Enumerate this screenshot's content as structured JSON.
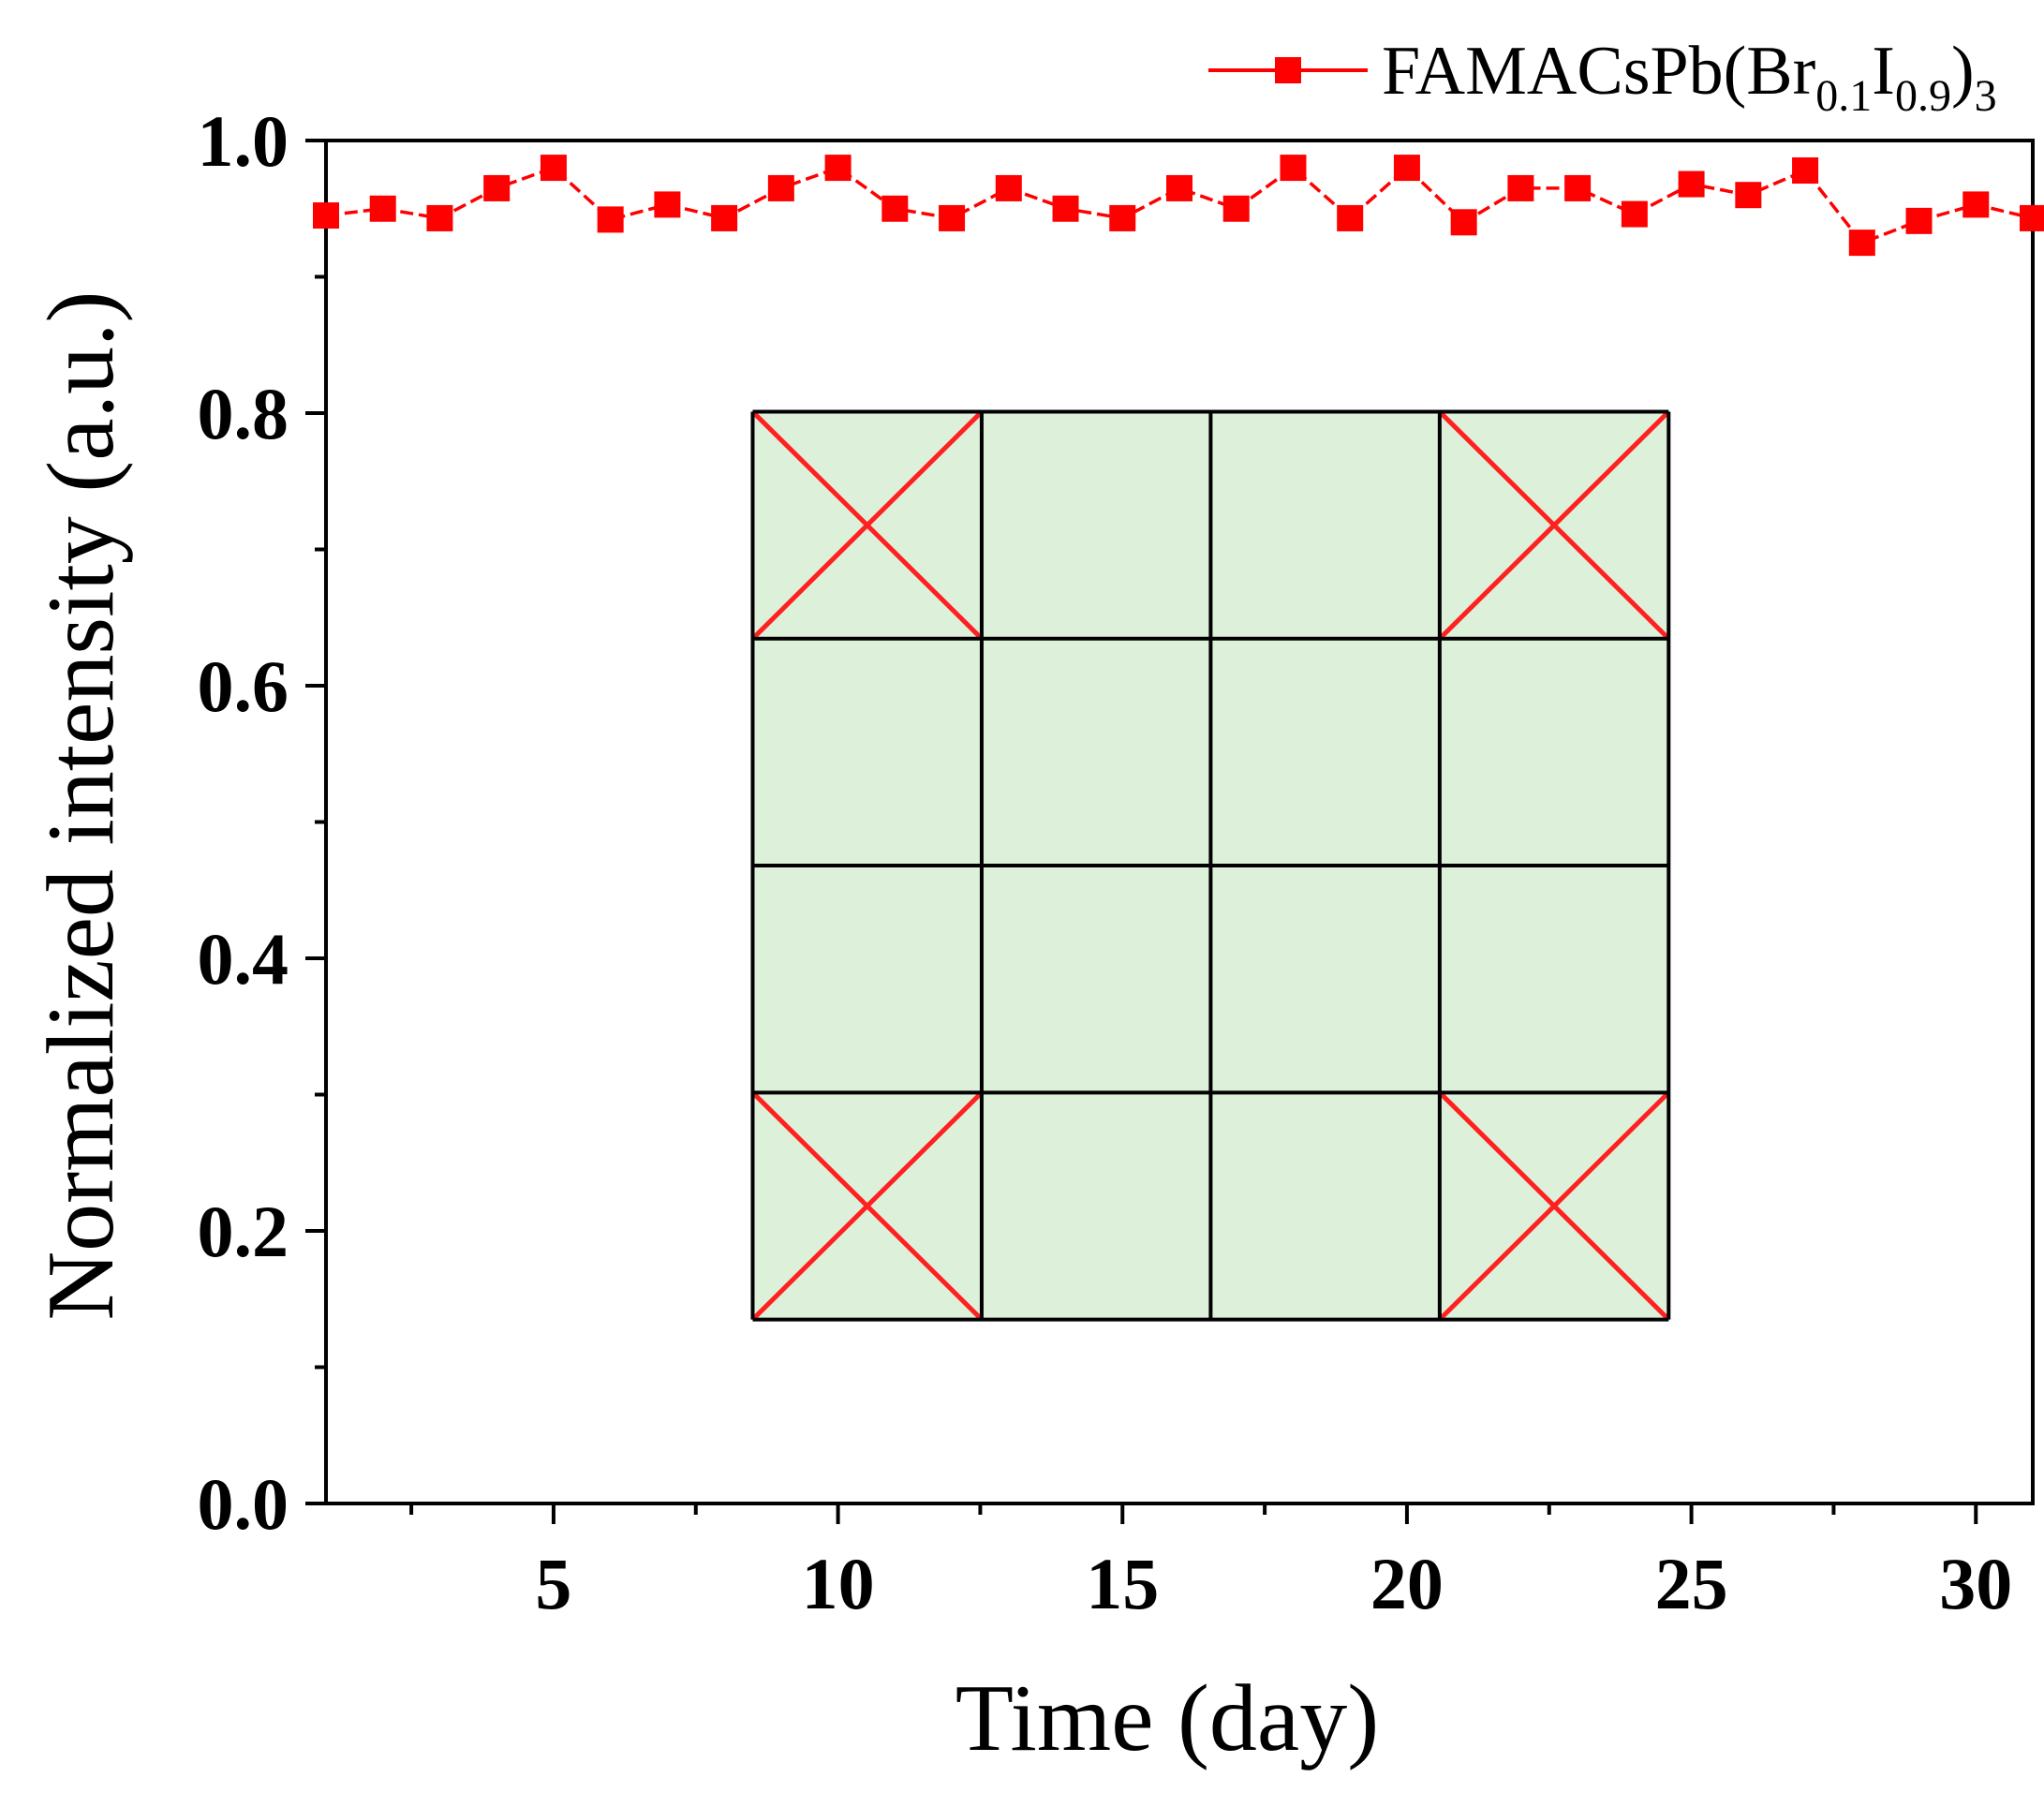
{
  "chart_data": {
    "type": "line",
    "title": "",
    "xlabel": "Time (day)",
    "ylabel": "Normalized intensity (a.u.)",
    "xlim": [
      1,
      31
    ],
    "ylim": [
      0.0,
      1.0
    ],
    "x_ticks": [
      5,
      10,
      15,
      20,
      25,
      30
    ],
    "x_tick_labels": [
      "5",
      "10",
      "15",
      "20",
      "25",
      "30"
    ],
    "x_minor_ticks": [
      2.5,
      7.5,
      12.5,
      17.5,
      22.5,
      27.5
    ],
    "y_ticks": [
      0.0,
      0.2,
      0.4,
      0.6,
      0.8,
      1.0
    ],
    "y_tick_labels": [
      "0.0",
      "0.2",
      "0.4",
      "0.6",
      "0.8",
      "1.0"
    ],
    "y_minor_ticks": [
      0.1,
      0.3,
      0.5,
      0.7,
      0.9
    ],
    "legend_position": "top-right",
    "grid": false,
    "series": [
      {
        "name": "FAMACsPb(Br0.1I0.9)3",
        "legend_parts": {
          "base": "FAMACsPb(Br",
          "sub1": "0.1",
          "mid": "I",
          "sub2": "0.9",
          "close": ")",
          "sub3": "3"
        },
        "color": "#ff0000",
        "marker": "square",
        "x": [
          1,
          2,
          3,
          4,
          5,
          6,
          7,
          8,
          9,
          10,
          11,
          12,
          13,
          14,
          15,
          16,
          17,
          18,
          19,
          20,
          21,
          22,
          23,
          24,
          25,
          26,
          27,
          28,
          29,
          30,
          31
        ],
        "y": [
          0.945,
          0.95,
          0.943,
          0.965,
          0.98,
          0.942,
          0.953,
          0.943,
          0.965,
          0.98,
          0.95,
          0.943,
          0.965,
          0.95,
          0.943,
          0.965,
          0.95,
          0.98,
          0.943,
          0.98,
          0.94,
          0.965,
          0.965,
          0.946,
          0.968,
          0.96,
          0.978,
          0.925,
          0.941,
          0.953,
          0.943
        ]
      }
    ],
    "inset": {
      "description_free": true,
      "rows": 4,
      "cols": 4,
      "fill": "#ddf0da",
      "grid_color": "#000000",
      "cross_color": "#ff2020",
      "crossed_cells": [
        [
          0,
          0
        ],
        [
          0,
          3
        ],
        [
          3,
          0
        ],
        [
          3,
          3
        ]
      ],
      "extent_x": [
        8.5,
        24.6
      ],
      "extent_y": [
        0.135,
        0.801
      ]
    }
  }
}
